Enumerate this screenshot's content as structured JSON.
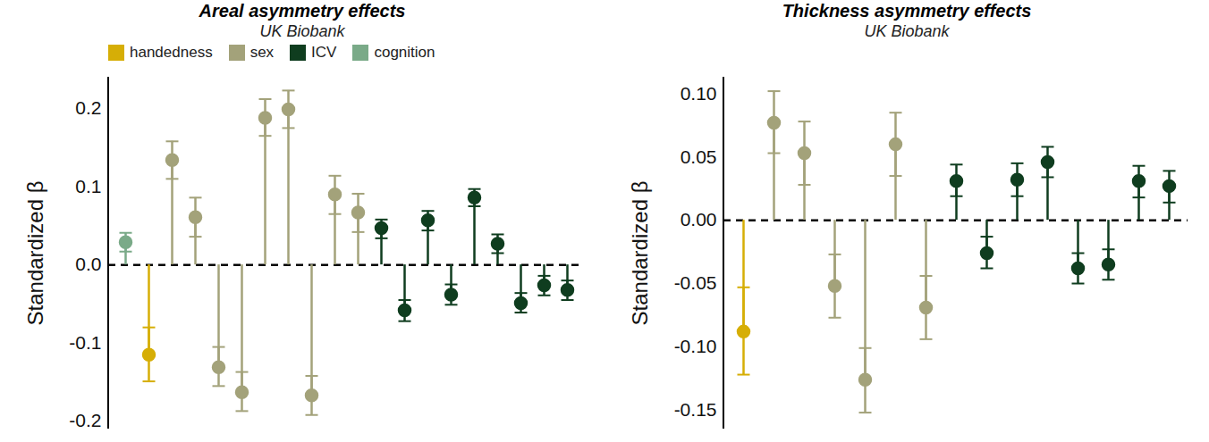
{
  "chart_data": [
    {
      "type": "errorbar",
      "title": "Areal asymmetry effects",
      "subtitle": "UK Biobank",
      "y_label": "Standardized β",
      "categories": [
        null,
        null,
        null,
        null,
        null,
        null,
        null,
        null,
        null,
        null,
        null,
        null,
        null,
        null,
        null,
        null,
        null,
        null,
        null,
        null
      ],
      "series": [
        {
          "name": "handedness",
          "color": "#d6ae06",
          "values": [
            null,
            -0.115,
            null,
            null,
            null,
            null,
            null,
            null,
            null,
            null,
            null,
            null,
            null,
            null,
            null,
            null,
            null,
            null,
            null,
            null
          ],
          "ci_low": [
            null,
            -0.149,
            null,
            null,
            null,
            null,
            null,
            null,
            null,
            null,
            null,
            null,
            null,
            null,
            null,
            null,
            null,
            null,
            null,
            null
          ],
          "ci_high": [
            null,
            -0.08,
            null,
            null,
            null,
            null,
            null,
            null,
            null,
            null,
            null,
            null,
            null,
            null,
            null,
            null,
            null,
            null,
            null,
            null
          ]
        },
        {
          "name": "sex",
          "color": "#a3a27a",
          "values": [
            null,
            null,
            0.134,
            0.061,
            -0.131,
            -0.163,
            0.188,
            0.199,
            -0.167,
            0.09,
            0.067,
            null,
            null,
            null,
            null,
            null,
            null,
            null,
            null,
            null
          ],
          "ci_low": [
            null,
            null,
            0.11,
            0.036,
            -0.155,
            -0.187,
            0.165,
            0.175,
            -0.192,
            0.065,
            0.042,
            null,
            null,
            null,
            null,
            null,
            null,
            null,
            null,
            null
          ],
          "ci_high": [
            null,
            null,
            0.158,
            0.086,
            -0.105,
            -0.137,
            0.212,
            0.223,
            -0.142,
            0.114,
            0.091,
            null,
            null,
            null,
            null,
            null,
            null,
            null,
            null,
            null
          ]
        },
        {
          "name": "ICV",
          "color": "#0f3d1f",
          "values": [
            null,
            null,
            null,
            null,
            null,
            null,
            null,
            null,
            null,
            null,
            null,
            0.047,
            -0.058,
            0.057,
            -0.038,
            0.086,
            0.027,
            -0.049,
            -0.026,
            -0.032
          ],
          "ci_low": [
            null,
            null,
            null,
            null,
            null,
            null,
            null,
            null,
            null,
            null,
            null,
            0.034,
            -0.072,
            0.044,
            -0.051,
            0.075,
            0.015,
            -0.061,
            -0.039,
            -0.045
          ],
          "ci_high": [
            null,
            null,
            null,
            null,
            null,
            null,
            null,
            null,
            null,
            null,
            null,
            0.058,
            -0.045,
            0.069,
            -0.025,
            0.097,
            0.039,
            -0.036,
            -0.014,
            -0.02
          ]
        },
        {
          "name": "cognition",
          "color": "#7aaa88",
          "values": [
            0.029,
            null,
            null,
            null,
            null,
            null,
            null,
            null,
            null,
            null,
            null,
            null,
            null,
            null,
            null,
            null,
            null,
            null,
            null,
            null
          ],
          "ci_low": [
            0.017,
            null,
            null,
            null,
            null,
            null,
            null,
            null,
            null,
            null,
            null,
            null,
            null,
            null,
            null,
            null,
            null,
            null,
            null,
            null
          ],
          "ci_high": [
            0.041,
            null,
            null,
            null,
            null,
            null,
            null,
            null,
            null,
            null,
            null,
            null,
            null,
            null,
            null,
            null,
            null,
            null,
            null,
            null
          ]
        }
      ],
      "ylim": [
        -0.21,
        0.24
      ],
      "yticks": [
        -0.2,
        -0.1,
        {
          "value": 0,
          "label": "0.0"
        },
        0.1,
        0.2
      ],
      "tick_labels": "y",
      "legend": "top"
    },
    {
      "type": "errorbar",
      "title": "Thickness asymmetry effects",
      "subtitle": "UK Biobank",
      "y_label": "Standardized β",
      "categories": [
        null,
        null,
        null,
        null,
        null,
        null,
        null,
        null,
        null,
        null,
        null,
        null,
        null,
        null,
        null
      ],
      "series": [
        {
          "name": "handedness",
          "color": "#d6ae06",
          "values": [
            -0.088,
            null,
            null,
            null,
            null,
            null,
            null,
            null,
            null,
            null,
            null,
            null,
            null,
            null,
            null
          ],
          "ci_low": [
            -0.122,
            null,
            null,
            null,
            null,
            null,
            null,
            null,
            null,
            null,
            null,
            null,
            null,
            null,
            null
          ],
          "ci_high": [
            -0.053,
            null,
            null,
            null,
            null,
            null,
            null,
            null,
            null,
            null,
            null,
            null,
            null,
            null,
            null
          ]
        },
        {
          "name": "sex",
          "color": "#a3a27a",
          "values": [
            null,
            0.077,
            0.053,
            -0.052,
            -0.126,
            0.06,
            -0.069,
            null,
            null,
            null,
            null,
            null,
            null,
            null,
            null
          ],
          "ci_low": [
            null,
            0.053,
            0.028,
            -0.077,
            -0.152,
            0.035,
            -0.094,
            null,
            null,
            null,
            null,
            null,
            null,
            null,
            null
          ],
          "ci_high": [
            null,
            0.102,
            0.078,
            -0.027,
            -0.101,
            0.085,
            -0.044,
            null,
            null,
            null,
            null,
            null,
            null,
            null,
            null
          ]
        },
        {
          "name": "ICV",
          "color": "#0f3d1f",
          "values": [
            null,
            null,
            null,
            null,
            null,
            null,
            null,
            0.031,
            -0.026,
            0.032,
            0.046,
            -0.038,
            -0.035,
            0.031,
            0.027
          ],
          "ci_low": [
            null,
            null,
            null,
            null,
            null,
            null,
            null,
            0.019,
            -0.038,
            0.019,
            0.034,
            -0.05,
            -0.047,
            0.018,
            0.014
          ],
          "ci_high": [
            null,
            null,
            null,
            null,
            null,
            null,
            null,
            0.044,
            -0.013,
            0.045,
            0.058,
            -0.026,
            -0.023,
            0.043,
            0.039
          ]
        }
      ],
      "ylim": [
        -0.165,
        0.113
      ],
      "yticks": [
        -0.15,
        {
          "value": -0.1,
          "label": "-0.10"
        },
        -0.05,
        {
          "value": 0,
          "label": "0.00"
        },
        0.05,
        {
          "value": 0.1,
          "label": "0.10"
        }
      ],
      "tick_labels": "y"
    }
  ]
}
